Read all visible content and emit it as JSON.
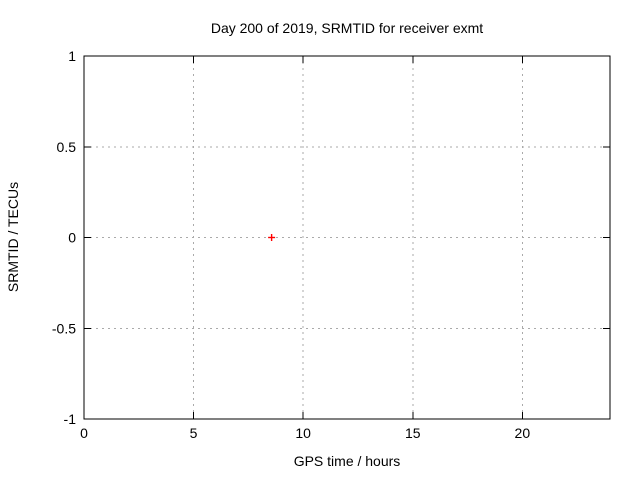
{
  "chart_data": {
    "type": "scatter",
    "title": "Day 200 of 2019, SRMTID for receiver exmt",
    "xlabel": "GPS time / hours",
    "ylabel": "SRMTID / TECUs",
    "xlim": [
      0,
      24
    ],
    "ylim": [
      -1,
      1
    ],
    "x_ticks": [
      0,
      5,
      10,
      15,
      20
    ],
    "x_tick_labels": [
      "0",
      "5",
      "10",
      "15",
      "20"
    ],
    "y_ticks": [
      -1,
      -0.5,
      0,
      0.5,
      1
    ],
    "y_tick_labels": [
      "-1",
      "-0.5",
      "0",
      "0.5",
      "1"
    ],
    "grid": true,
    "legend": "none",
    "series": [
      {
        "name": "SRMTID",
        "marker": "plus",
        "color": "#ff0000",
        "points": [
          {
            "x": 8.56,
            "y": 0.0
          }
        ]
      }
    ],
    "colors": {
      "background": "#ffffff",
      "border": "#000000",
      "grid": "#aaaaaa",
      "text": "#000000"
    }
  }
}
